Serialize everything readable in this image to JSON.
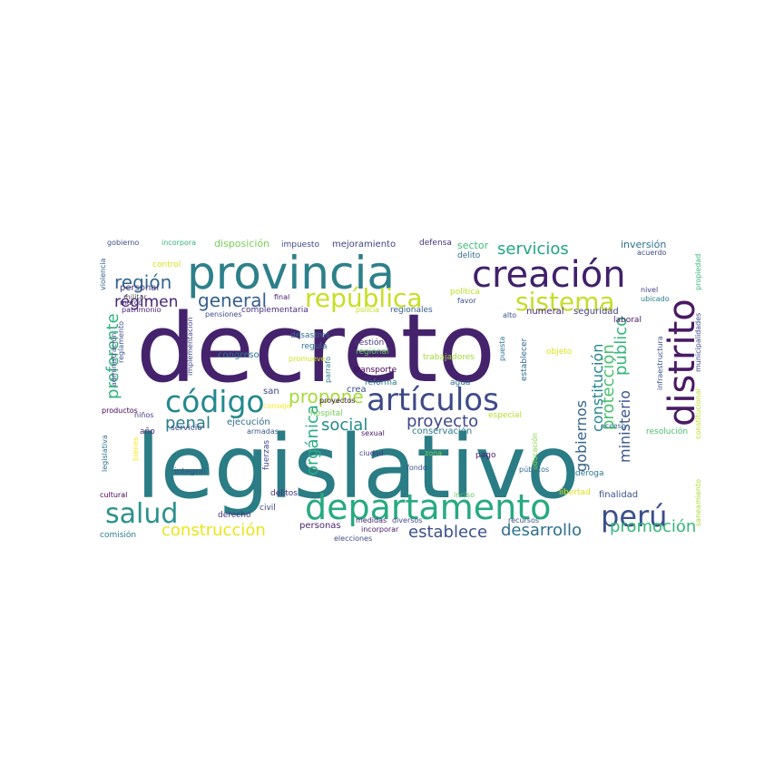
{
  "words": [
    {
      "text": "decreto",
      "color": "#45226c"
    },
    {
      "text": "legislativo",
      "color": "#2a7c85"
    },
    {
      "text": "provincia",
      "color": "#2d808a"
    },
    {
      "text": "creación",
      "color": "#41216b"
    },
    {
      "text": "departamento",
      "color": "#27a981"
    },
    {
      "text": "distrito",
      "color": "#4a1a63"
    },
    {
      "text": "artículos",
      "color": "#3e4a89"
    },
    {
      "text": "código",
      "color": "#23898e"
    },
    {
      "text": "república",
      "color": "#c6df25"
    },
    {
      "text": "sistema",
      "color": "#c4dd2b"
    },
    {
      "text": "salud",
      "color": "#2b918c"
    },
    {
      "text": "perú",
      "color": "#3b4f8a"
    },
    {
      "text": "región",
      "color": "#31678e"
    },
    {
      "text": "régimen",
      "color": "#482576"
    },
    {
      "text": "general",
      "color": "#355f8d"
    },
    {
      "text": "servicios",
      "color": "#21a585"
    },
    {
      "text": "propone",
      "color": "#a5db36"
    },
    {
      "text": "proyecto",
      "color": "#3e4989"
    },
    {
      "text": "social",
      "color": "#238a8d"
    },
    {
      "text": "penal",
      "color": "#287d8e"
    },
    {
      "text": "construcción",
      "color": "#eae51a"
    },
    {
      "text": "establece",
      "color": "#3b518b"
    },
    {
      "text": "desarrollo",
      "color": "#2d708e"
    },
    {
      "text": "promoción",
      "color": "#35b779"
    },
    {
      "text": "preferente",
      "color": "#2fb47c"
    },
    {
      "text": "orgánica",
      "color": "#27ad81"
    },
    {
      "text": "público",
      "color": "#34b679"
    },
    {
      "text": "protección",
      "color": "#4ac16d"
    },
    {
      "text": "ministerio",
      "color": "#3a548c"
    },
    {
      "text": "gobiernos",
      "color": "#33628d"
    },
    {
      "text": "constitución",
      "color": "#25858e"
    },
    {
      "text": "inversión",
      "color": "#2c728e"
    },
    {
      "text": "gobierno",
      "color": "#3c4f8a"
    },
    {
      "text": "incorpora",
      "color": "#31b57b"
    },
    {
      "text": "disposición",
      "color": "#75d054"
    },
    {
      "text": "impuesto",
      "color": "#3f4788"
    },
    {
      "text": "mejoramiento",
      "color": "#414487"
    },
    {
      "text": "defensa",
      "color": "#46307e"
    },
    {
      "text": "sector",
      "color": "#3cbb75"
    },
    {
      "text": "delito",
      "color": "#2e6e8e"
    },
    {
      "text": "acuerdo",
      "color": "#3e4a89"
    },
    {
      "text": "violencia",
      "color": "#355e8d"
    },
    {
      "text": "control",
      "color": "#d8e219"
    },
    {
      "text": "personal",
      "color": "#453781"
    },
    {
      "text": "militar",
      "color": "#5a5a5a"
    },
    {
      "text": "marco",
      "color": "#46327e"
    },
    {
      "text": "patrimonio",
      "color": "#481f70"
    },
    {
      "text": "pensiones",
      "color": "#3e4c8a"
    },
    {
      "text": "final",
      "color": "#481a6c"
    },
    {
      "text": "complementaria",
      "color": "#472d7b"
    },
    {
      "text": "política",
      "color": "#bddf26"
    },
    {
      "text": "policía",
      "color": "#c2df23"
    },
    {
      "text": "regionales",
      "color": "#365c8d"
    },
    {
      "text": "favor",
      "color": "#3c4f8a"
    },
    {
      "text": "nivel",
      "color": "#424086"
    },
    {
      "text": "ubicado",
      "color": "#287d8e"
    },
    {
      "text": "municipalidades",
      "color": "#3e4989"
    },
    {
      "text": "propiedad",
      "color": "#35b779"
    },
    {
      "text": "numeral",
      "color": "#482374"
    },
    {
      "text": "seguridad",
      "color": "#433e85"
    },
    {
      "text": "alto",
      "color": "#3b528b"
    },
    {
      "text": "laboral",
      "color": "#481668"
    },
    {
      "text": "reglamento",
      "color": "#3a538b"
    },
    {
      "text": "administración",
      "color": "#414487"
    },
    {
      "text": "implementación",
      "color": "#3f4788"
    },
    {
      "text": "desastres",
      "color": "#2e6f8e"
    },
    {
      "text": "regula",
      "color": "#2d708e"
    },
    {
      "text": "gestión",
      "color": "#453882"
    },
    {
      "text": "regional",
      "color": "#5ec962"
    },
    {
      "text": "congreso",
      "color": "#2a788e"
    },
    {
      "text": "promueve",
      "color": "#d0e11c"
    },
    {
      "text": "parrafo",
      "color": "#2a768e"
    },
    {
      "text": "transporte",
      "color": "#440154"
    },
    {
      "text": "trabajadores",
      "color": "#a2da37"
    },
    {
      "text": "puesta",
      "color": "#2c728e"
    },
    {
      "text": "establecer",
      "color": "#31688e"
    },
    {
      "text": "objeto",
      "color": "#dfe318"
    },
    {
      "text": "infraestructura",
      "color": "#3b528b"
    },
    {
      "text": "constitucional",
      "color": "#c0df25"
    },
    {
      "text": "saneamiento",
      "color": "#a8db34"
    },
    {
      "text": "san",
      "color": "#414487"
    },
    {
      "text": "crea",
      "color": "#3b518b"
    },
    {
      "text": "reforma",
      "color": "#2c728e"
    },
    {
      "text": "agua",
      "color": "#31688e"
    },
    {
      "text": "consejo",
      "color": "#fde725"
    },
    {
      "text": "hospital",
      "color": "#73d056"
    },
    {
      "text": "proyectos",
      "color": "#46085c"
    },
    {
      "text": "especial",
      "color": "#b5de2b"
    },
    {
      "text": "productos",
      "color": "#440154"
    },
    {
      "text": "niños",
      "color": "#433e85"
    },
    {
      "text": "año",
      "color": "#482878"
    },
    {
      "text": "ejecución",
      "color": "#2f6c8e"
    },
    {
      "text": "servicio",
      "color": "#3e4989"
    },
    {
      "text": "armadas",
      "color": "#38588c"
    },
    {
      "text": "sexual",
      "color": "#481b6d"
    },
    {
      "text": "conservación",
      "color": "#2a788e"
    },
    {
      "text": "acceso",
      "color": "#31688e"
    },
    {
      "text": "resolución",
      "color": "#4ac16d"
    },
    {
      "text": "educación",
      "color": "#84d44b"
    },
    {
      "text": "legislativa",
      "color": "#2d708e"
    },
    {
      "text": "bienes",
      "color": "#fde725"
    },
    {
      "text": "integral",
      "color": "#3b528b"
    },
    {
      "text": "fuerzas",
      "color": "#3e4a89"
    },
    {
      "text": "ciudad",
      "color": "#433e85"
    },
    {
      "text": "zona",
      "color": "#7ad151"
    },
    {
      "text": "pago",
      "color": "#481b6d"
    },
    {
      "text": "fondo",
      "color": "#3b518b"
    },
    {
      "text": "públicos",
      "color": "#2e6e8e"
    },
    {
      "text": "deroga",
      "color": "#2c728e"
    },
    {
      "text": "cultural",
      "color": "#440154"
    },
    {
      "text": "delitos",
      "color": "#46307e"
    },
    {
      "text": "inciso",
      "color": "#5ec962"
    },
    {
      "text": "libertad",
      "color": "#dde318"
    },
    {
      "text": "finalidad",
      "color": "#3b528b"
    },
    {
      "text": "medidas",
      "color": "#482475"
    },
    {
      "text": "diversos",
      "color": "#3e4a89"
    },
    {
      "text": "recursos",
      "color": "#3b518b"
    },
    {
      "text": "derecho",
      "color": "#46327e"
    },
    {
      "text": "civil",
      "color": "#3e4989"
    },
    {
      "text": "personas",
      "color": "#482475"
    },
    {
      "text": "incorporar",
      "color": "#481668"
    },
    {
      "text": "elecciones",
      "color": "#3e4a89"
    },
    {
      "text": "comisión",
      "color": "#287d8e"
    }
  ]
}
